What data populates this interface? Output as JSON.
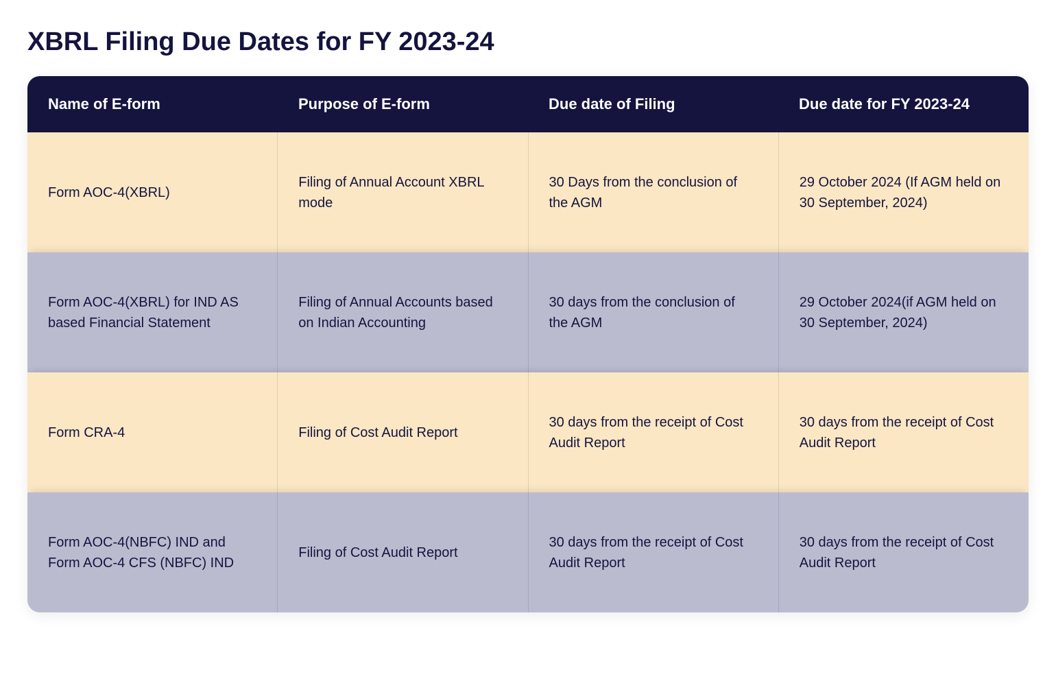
{
  "title": "XBRL Filing Due Dates for FY 2023-24",
  "table": {
    "header_bg": "#14143f",
    "header_text_color": "#ffffff",
    "row_odd_bg": "#fbe7c4",
    "row_even_bg": "#bbbbd0",
    "text_color": "#14143f",
    "border_color": "rgba(20,20,63,0.12)",
    "border_radius": 18,
    "title_fontsize": 38,
    "header_fontsize": 22,
    "cell_fontsize": 20,
    "columns": [
      "Name of E-form",
      "Purpose of E-form",
      "Due date of Filing",
      "Due date for FY 2023-24"
    ],
    "rows": [
      {
        "name": "Form AOC-4(XBRL)",
        "purpose": "Filing of Annual Account XBRL mode",
        "due_date": "30 Days from the conclusion of the AGM",
        "due_date_fy": "29 October 2024 (If AGM held on 30 September, 2024)"
      },
      {
        "name": "Form AOC-4(XBRL) for IND AS based Financial Statement",
        "purpose": "Filing of Annual Accounts based on Indian Accounting",
        "due_date": "30 days from the conclusion of the AGM",
        "due_date_fy": "29 October 2024(if AGM held on 30 September, 2024)"
      },
      {
        "name": "Form CRA-4",
        "purpose": "Filing of Cost Audit Report",
        "due_date": "30 days from the receipt of Cost Audit Report",
        "due_date_fy": "30 days from the receipt of Cost Audit Report"
      },
      {
        "name": "Form AOC-4(NBFC) IND and Form AOC-4 CFS (NBFC) IND",
        "purpose": "Filing of Cost Audit Report",
        "due_date": "30 days from the receipt of Cost Audit Report",
        "due_date_fy": "30 days from the receipt of Cost Audit Report"
      }
    ]
  }
}
